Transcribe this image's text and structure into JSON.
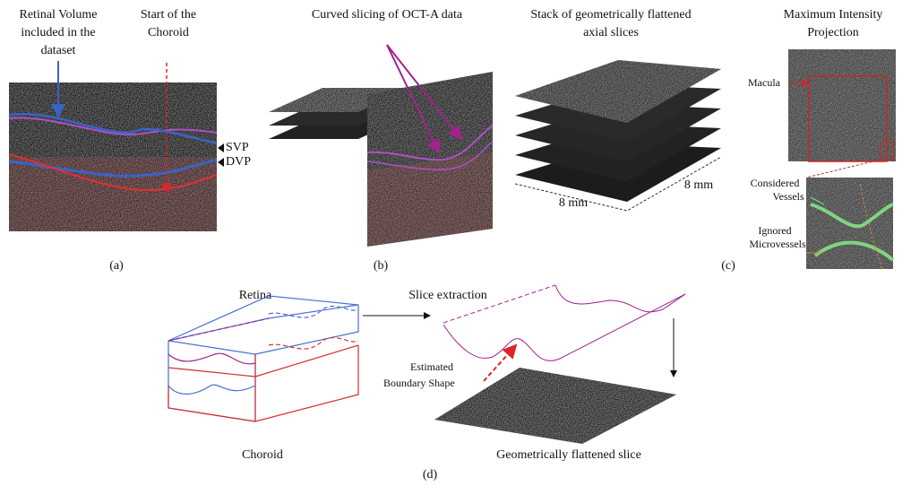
{
  "panel_a": {
    "retinal_volume_label": [
      "Retinal Volume",
      "included in the",
      "dataset"
    ],
    "choroid_start_label": [
      "Start of the",
      "Choroid"
    ],
    "svp": "SVP",
    "dvp": "DVP",
    "caption": "(a)"
  },
  "panel_b": {
    "title": "Curved slicing of OCT-A data",
    "caption": "(b)"
  },
  "panel_c": {
    "stack_title": [
      "Stack of geometrically flattened",
      "axial slices"
    ],
    "width_label": "8 mm",
    "depth_label": "8 mm",
    "mip_title": [
      "Maximum Intensity",
      "Projection"
    ],
    "macula": "Macula",
    "considered": [
      "Considered",
      "Vessels"
    ],
    "ignored": [
      "Ignored",
      "Microvessels"
    ],
    "caption": "(c)"
  },
  "panel_d": {
    "retina": "Retina",
    "choroid": "Choroid",
    "slice_extraction": "Slice extraction",
    "boundary": [
      "Estimated",
      "Boundary Shape"
    ],
    "flattened": "Geometrically flattened slice",
    "caption": "(d)"
  }
}
